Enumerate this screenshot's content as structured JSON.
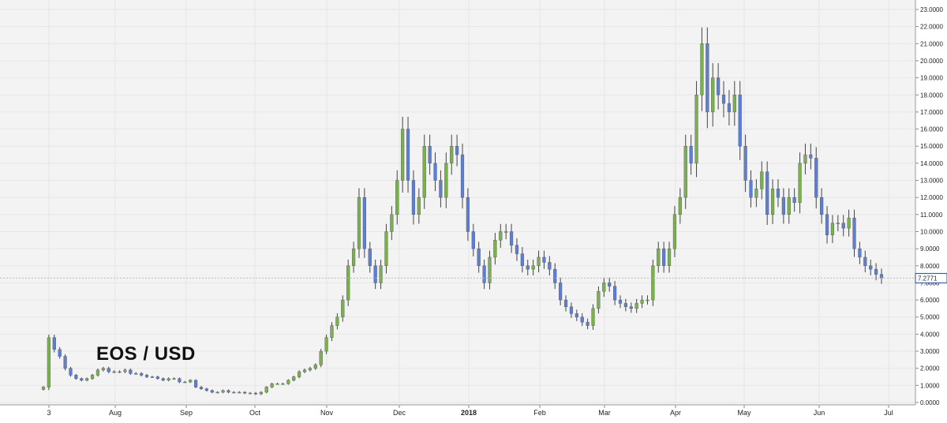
{
  "chart_data": {
    "type": "candlestick",
    "title": "EOS / USD",
    "ylim": [
      0,
      23
    ],
    "y_ticks": [
      "0.0000",
      "1.0000",
      "2.0000",
      "3.0000",
      "4.0000",
      "5.0000",
      "6.0000",
      "7.0000",
      "8.0000",
      "9.0000",
      "10.0000",
      "11.0000",
      "12.0000",
      "13.0000",
      "14.0000",
      "15.0000",
      "16.0000",
      "17.0000",
      "18.0000",
      "19.0000",
      "20.0000",
      "21.0000",
      "22.0000",
      "23.0000"
    ],
    "x_ticks": [
      "3",
      "Aug",
      "Sep",
      "Oct",
      "Nov",
      "Dec",
      "2018",
      "Feb",
      "Mar",
      "Apr",
      "May",
      "Jun",
      "Jul"
    ],
    "last_price": "7.2771",
    "last_price_value": 7.2771,
    "grid": true,
    "colors": {
      "up": "#7ab04e",
      "down": "#5b7fd6",
      "wick": "#444444",
      "grid": "#e6e6e6",
      "background": "#f3f3f3",
      "price_label": "#2b4aa8"
    },
    "close_series": [
      0.9,
      3.8,
      3.1,
      2.7,
      2.0,
      1.6,
      1.4,
      1.3,
      1.4,
      1.6,
      1.9,
      2.0,
      1.8,
      1.8,
      1.8,
      1.9,
      1.7,
      1.7,
      1.6,
      1.5,
      1.5,
      1.4,
      1.3,
      1.4,
      1.4,
      1.2,
      1.2,
      1.3,
      0.9,
      0.8,
      0.7,
      0.6,
      0.6,
      0.7,
      0.6,
      0.6,
      0.6,
      0.55,
      0.55,
      0.5,
      0.6,
      0.9,
      1.1,
      1.1,
      1.1,
      1.3,
      1.5,
      1.8,
      1.9,
      2.0,
      2.2,
      3.0,
      3.8,
      4.5,
      5.0,
      6.0,
      8.0,
      9.0,
      12.0,
      9.0,
      8.0,
      7.0,
      8.0,
      10.0,
      11.0,
      13.0,
      16.0,
      13.0,
      11.0,
      12.0,
      15.0,
      14.0,
      13.0,
      12.0,
      14.0,
      15.0,
      14.5,
      12.0,
      10.0,
      9.0,
      8.0,
      7.0,
      8.5,
      9.5,
      10.0,
      10.0,
      9.2,
      8.7,
      8.0,
      7.8,
      8.0,
      8.5,
      8.2,
      7.8,
      7.0,
      6.0,
      5.6,
      5.2,
      5.0,
      4.7,
      4.5,
      5.5,
      6.5,
      7.0,
      6.8,
      6.0,
      5.8,
      5.6,
      5.5,
      5.8,
      6.0,
      6.0,
      8.0,
      9.0,
      8.0,
      9.0,
      11.0,
      12.0,
      15.0,
      14.0,
      18.0,
      21.0,
      17.0,
      19.0,
      18.0,
      17.5,
      17.0,
      18.0,
      15.0,
      13.0,
      12.0,
      12.5,
      13.5,
      11.0,
      12.5,
      12.0,
      11.0,
      12.0,
      11.7,
      14.0,
      14.5,
      14.3,
      12.0,
      11.0,
      9.8,
      10.5,
      10.5,
      10.2,
      10.8,
      9.0,
      8.5,
      8.0,
      7.8,
      7.5,
      7.2771
    ]
  }
}
